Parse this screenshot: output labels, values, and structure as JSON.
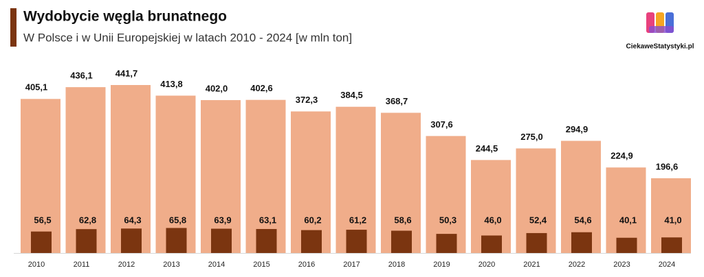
{
  "chart_data": {
    "type": "bar",
    "title": "Wydobycie węgla brunatnego",
    "subtitle": "W Polsce i w Unii Europejskiej w latach 2010 - 2024 [w mln ton]",
    "watermark": "CiekaweStatystyki.pl",
    "categories": [
      "2010",
      "2011",
      "2012",
      "2013",
      "2014",
      "2015",
      "2016",
      "2017",
      "2018",
      "2019",
      "2020",
      "2021",
      "2022",
      "2023",
      "2024"
    ],
    "series": [
      {
        "color": "#f0ad8a",
        "values": [
          405.1,
          436.1,
          441.7,
          413.8,
          402.0,
          402.6,
          372.3,
          384.5,
          368.7,
          307.6,
          244.5,
          275.0,
          294.9,
          224.9,
          196.6
        ],
        "value_labels": [
          "405,1",
          "436,1",
          "441,7",
          "413,8",
          "402,0",
          "402,6",
          "372,3",
          "384,5",
          "368,7",
          "307,6",
          "244,5",
          "275,0",
          "294,9",
          "224,9",
          "196,6"
        ]
      },
      {
        "color": "#7b3510",
        "values": [
          56.5,
          62.8,
          64.3,
          65.8,
          63.9,
          63.1,
          60.2,
          61.2,
          58.6,
          50.3,
          46.0,
          52.4,
          54.6,
          40.1,
          41.0
        ],
        "value_labels": [
          "56,5",
          "62,8",
          "64,3",
          "65,8",
          "63,9",
          "63,1",
          "60,2",
          "61,2",
          "58,6",
          "50,3",
          "46,0",
          "52,4",
          "54,6",
          "40,1",
          "41,0"
        ]
      }
    ]
  }
}
